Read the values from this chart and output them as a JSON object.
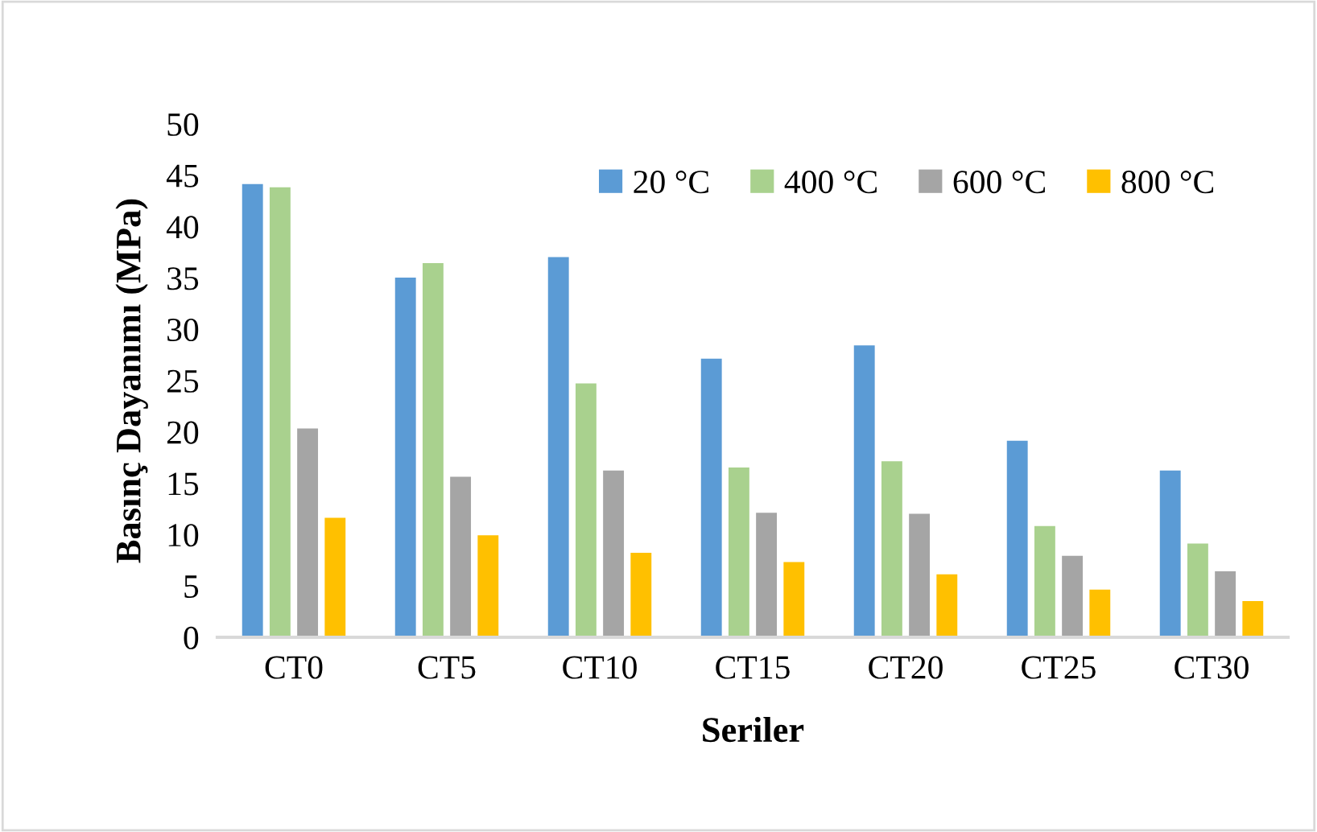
{
  "chart_data": {
    "type": "bar",
    "xlabel": "Seriler",
    "ylabel": "Basınç Dayanımı (MPa)",
    "categories": [
      "CT0",
      "CT5",
      "CT10",
      "CT15",
      "CT20",
      "CT25",
      "CT30"
    ],
    "series": [
      {
        "name": "20 °C",
        "color": "#5b9bd5",
        "values": [
          44.2,
          35.1,
          37.1,
          27.2,
          28.5,
          19.2,
          16.3
        ]
      },
      {
        "name": "400 °C",
        "color": "#a9d18e",
        "values": [
          43.9,
          36.5,
          24.8,
          16.6,
          17.2,
          10.9,
          9.2
        ]
      },
      {
        "name": "600 °C",
        "color": "#a5a5a5",
        "values": [
          20.4,
          15.7,
          16.3,
          12.2,
          12.1,
          8.0,
          6.5
        ]
      },
      {
        "name": "800 °C",
        "color": "#ffc000",
        "values": [
          11.7,
          10.0,
          8.3,
          7.4,
          6.2,
          4.7,
          3.6
        ]
      }
    ],
    "ylim": [
      0,
      50
    ],
    "yticks": [
      0,
      5,
      10,
      15,
      20,
      25,
      30,
      35,
      40,
      45,
      50
    ],
    "grid": false,
    "legend": "top right"
  }
}
